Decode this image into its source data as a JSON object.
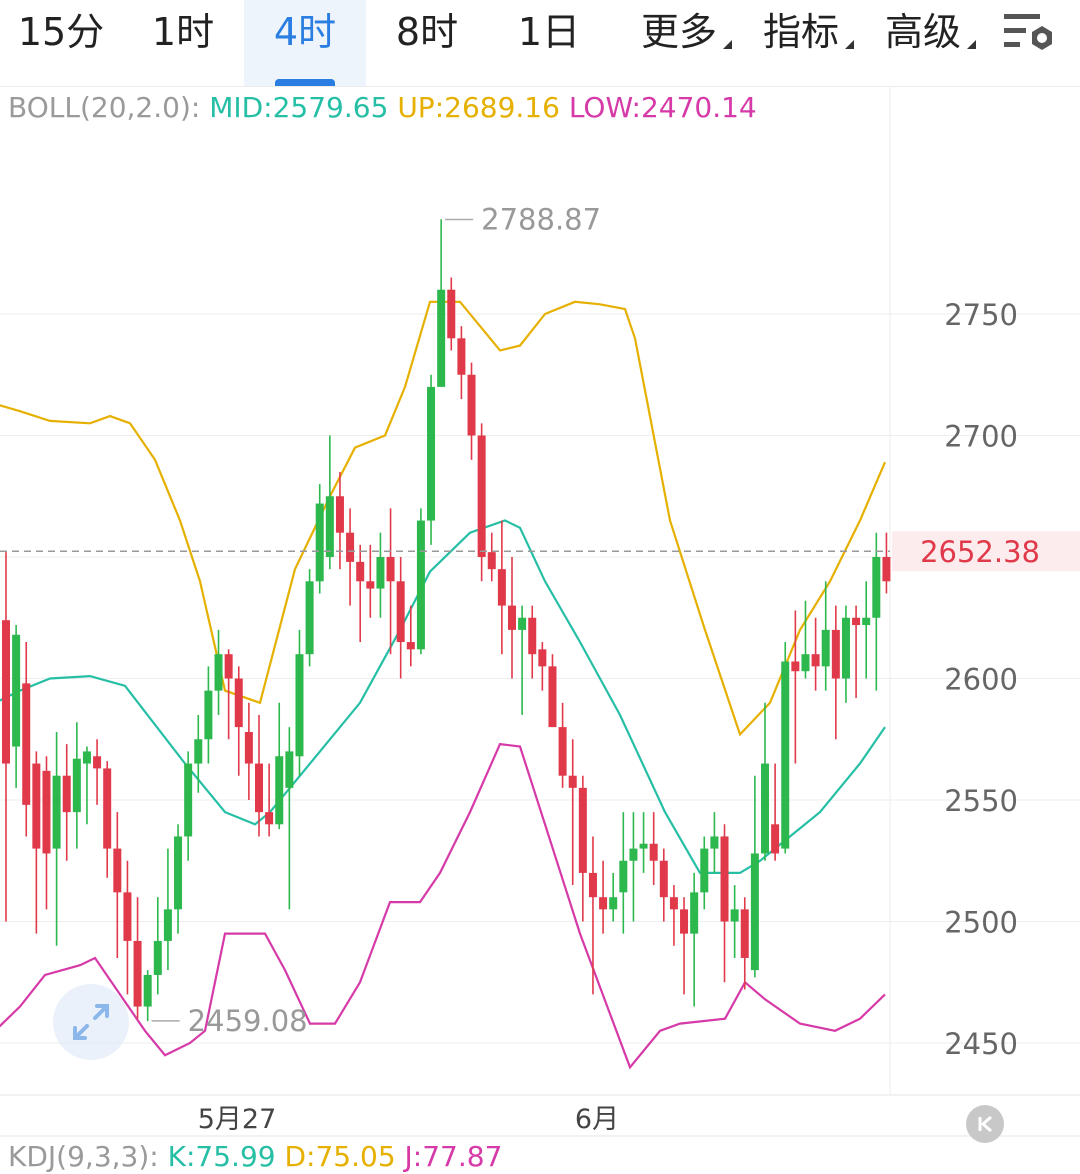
{
  "tabs": [
    {
      "label": "15分"
    },
    {
      "label": "1时"
    },
    {
      "label": "4时"
    },
    {
      "label": "8时"
    },
    {
      "label": "1日"
    },
    {
      "label": "更多"
    },
    {
      "label": "指标"
    },
    {
      "label": "高级"
    }
  ],
  "boll_legend": {
    "name": "BOLL(20,2.0):",
    "mid": "MID:2579.65",
    "up": "UP:2689.16",
    "low": "LOW:2470.14"
  },
  "kdj_legend": {
    "name": "KDJ(9,3,3):",
    "k": "K:75.99",
    "d": "D:75.05",
    "j": "J:77.87"
  },
  "chart_data": {
    "type": "candlestick",
    "y_ticks": [
      2450,
      2500,
      2550,
      2600,
      2650,
      2700,
      2750
    ],
    "y_tick_labels": [
      "2450",
      "2500",
      "2550",
      "2600",
      "2700",
      "2750"
    ],
    "x_labels": [
      "5月27",
      "6月"
    ],
    "ylim": [
      2435,
      2830
    ],
    "current_price_label": "2652.38",
    "current_price": 2652.38,
    "max_label": "2788.87",
    "max_value": 2788.87,
    "min_label": "2459.08",
    "min_value": 2459.08,
    "colors": {
      "up": "#2db84e",
      "down": "#e03a4a",
      "mid": "#26bfa6",
      "upper": "#e6b000",
      "lower": "#d63aa8",
      "price_line": "#999999",
      "price_label": "#e03a4a"
    },
    "candles": [
      [
        2624,
        2565,
        2652,
        2500
      ],
      [
        2572,
        2618,
        2622,
        2555
      ],
      [
        2598,
        2548,
        2615,
        2535
      ],
      [
        2565,
        2530,
        2570,
        2495
      ],
      [
        2562,
        2528,
        2568,
        2505
      ],
      [
        2530,
        2560,
        2578,
        2490
      ],
      [
        2560,
        2545,
        2573,
        2525
      ],
      [
        2545,
        2567,
        2582,
        2530
      ],
      [
        2565,
        2570,
        2572,
        2540
      ],
      [
        2568,
        2563,
        2575,
        2548
      ],
      [
        2563,
        2530,
        2566,
        2518
      ],
      [
        2530,
        2512,
        2545,
        2485
      ],
      [
        2512,
        2492,
        2525,
        2470
      ],
      [
        2492,
        2465,
        2510,
        2460
      ],
      [
        2465,
        2478,
        2480,
        2459
      ],
      [
        2478,
        2492,
        2510,
        2470
      ],
      [
        2492,
        2505,
        2530,
        2480
      ],
      [
        2505,
        2535,
        2540,
        2495
      ],
      [
        2535,
        2565,
        2570,
        2525
      ],
      [
        2565,
        2575,
        2585,
        2553
      ],
      [
        2575,
        2595,
        2605,
        2565
      ],
      [
        2595,
        2610,
        2620,
        2585
      ],
      [
        2610,
        2600,
        2612,
        2575
      ],
      [
        2600,
        2580,
        2605,
        2560
      ],
      [
        2578,
        2565,
        2590,
        2550
      ],
      [
        2565,
        2545,
        2585,
        2535
      ],
      [
        2545,
        2540,
        2565,
        2535
      ],
      [
        2540,
        2568,
        2590,
        2538
      ],
      [
        2555,
        2570,
        2580,
        2505
      ],
      [
        2568,
        2610,
        2620,
        2560
      ],
      [
        2610,
        2640,
        2645,
        2605
      ],
      [
        2640,
        2672,
        2680,
        2635
      ],
      [
        2650,
        2675,
        2700,
        2645
      ],
      [
        2675,
        2660,
        2685,
        2645
      ],
      [
        2660,
        2648,
        2670,
        2630
      ],
      [
        2648,
        2640,
        2655,
        2615
      ],
      [
        2640,
        2637,
        2655,
        2625
      ],
      [
        2637,
        2650,
        2660,
        2625
      ],
      [
        2650,
        2640,
        2670,
        2610
      ],
      [
        2640,
        2615,
        2650,
        2600
      ],
      [
        2615,
        2612,
        2630,
        2605
      ],
      [
        2612,
        2665,
        2670,
        2610
      ],
      [
        2665,
        2720,
        2725,
        2655
      ],
      [
        2720,
        2760,
        2789,
        2755
      ],
      [
        2760,
        2740,
        2765,
        2735
      ],
      [
        2740,
        2725,
        2745,
        2715
      ],
      [
        2725,
        2700,
        2730,
        2690
      ],
      [
        2700,
        2650,
        2705,
        2640
      ],
      [
        2652,
        2645,
        2660,
        2640
      ],
      [
        2645,
        2630,
        2665,
        2610
      ],
      [
        2630,
        2620,
        2650,
        2600
      ],
      [
        2620,
        2625,
        2630,
        2585
      ],
      [
        2625,
        2610,
        2630,
        2600
      ],
      [
        2612,
        2605,
        2615,
        2595
      ],
      [
        2605,
        2580,
        2610,
        2580
      ],
      [
        2580,
        2560,
        2590,
        2555
      ],
      [
        2560,
        2555,
        2575,
        2515
      ],
      [
        2555,
        2520,
        2560,
        2500
      ],
      [
        2520,
        2510,
        2535,
        2470
      ],
      [
        2510,
        2505,
        2525,
        2495
      ],
      [
        2505,
        2510,
        2520,
        2500
      ],
      [
        2512,
        2525,
        2545,
        2495
      ],
      [
        2525,
        2530,
        2545,
        2500
      ],
      [
        2530,
        2532,
        2545,
        2520
      ],
      [
        2532,
        2525,
        2545,
        2515
      ],
      [
        2525,
        2510,
        2530,
        2500
      ],
      [
        2510,
        2505,
        2515,
        2490
      ],
      [
        2505,
        2495,
        2510,
        2470
      ],
      [
        2495,
        2512,
        2520,
        2465
      ],
      [
        2512,
        2530,
        2535,
        2505
      ],
      [
        2530,
        2535,
        2545,
        2520
      ],
      [
        2535,
        2500,
        2540,
        2475
      ],
      [
        2500,
        2505,
        2515,
        2485
      ],
      [
        2505,
        2485,
        2510,
        2472
      ],
      [
        2480,
        2528,
        2560,
        2477
      ],
      [
        2528,
        2565,
        2590,
        2525
      ],
      [
        2540,
        2528,
        2565,
        2525
      ],
      [
        2530,
        2607,
        2615,
        2528
      ],
      [
        2607,
        2603,
        2628,
        2565
      ],
      [
        2603,
        2610,
        2632,
        2600
      ],
      [
        2610,
        2605,
        2625,
        2595
      ],
      [
        2605,
        2620,
        2640,
        2595
      ],
      [
        2620,
        2600,
        2630,
        2575
      ],
      [
        2600,
        2625,
        2630,
        2590
      ],
      [
        2625,
        2622,
        2630,
        2592
      ],
      [
        2622,
        2625,
        2640,
        2600
      ],
      [
        2625,
        2650,
        2660,
        2595
      ],
      [
        2650,
        2640,
        2660,
        2635
      ]
    ],
    "boll_mid": [
      [
        -5,
        2590
      ],
      [
        20,
        2595
      ],
      [
        50,
        2600
      ],
      [
        90,
        2601
      ],
      [
        125,
        2597
      ],
      [
        185,
        2565
      ],
      [
        225,
        2545
      ],
      [
        255,
        2540
      ],
      [
        270,
        2545
      ],
      [
        300,
        2560
      ],
      [
        360,
        2590
      ],
      [
        400,
        2620
      ],
      [
        430,
        2644
      ],
      [
        470,
        2660
      ],
      [
        505,
        2665
      ],
      [
        520,
        2662
      ],
      [
        545,
        2640
      ],
      [
        580,
        2615
      ],
      [
        620,
        2585
      ],
      [
        665,
        2545
      ],
      [
        700,
        2520
      ],
      [
        740,
        2520
      ],
      [
        760,
        2525
      ],
      [
        820,
        2545
      ],
      [
        860,
        2565
      ],
      [
        885,
        2580
      ]
    ],
    "boll_up": [
      [
        -5,
        2713
      ],
      [
        20,
        2710
      ],
      [
        50,
        2706
      ],
      [
        90,
        2705
      ],
      [
        110,
        2708
      ],
      [
        130,
        2705
      ],
      [
        155,
        2690
      ],
      [
        180,
        2665
      ],
      [
        200,
        2640
      ],
      [
        225,
        2595
      ],
      [
        260,
        2590
      ],
      [
        295,
        2645
      ],
      [
        330,
        2675
      ],
      [
        355,
        2695
      ],
      [
        385,
        2700
      ],
      [
        405,
        2720
      ],
      [
        430,
        2755
      ],
      [
        460,
        2755
      ],
      [
        480,
        2745
      ],
      [
        500,
        2735
      ],
      [
        520,
        2737
      ],
      [
        545,
        2750
      ],
      [
        575,
        2755
      ],
      [
        600,
        2754
      ],
      [
        625,
        2752
      ],
      [
        635,
        2740
      ],
      [
        670,
        2665
      ],
      [
        705,
        2620
      ],
      [
        740,
        2577
      ],
      [
        770,
        2590
      ],
      [
        800,
        2620
      ],
      [
        830,
        2640
      ],
      [
        860,
        2665
      ],
      [
        885,
        2689
      ]
    ],
    "boll_low": [
      [
        -5,
        2455
      ],
      [
        20,
        2465
      ],
      [
        45,
        2478
      ],
      [
        80,
        2482
      ],
      [
        95,
        2485
      ],
      [
        120,
        2470
      ],
      [
        145,
        2455
      ],
      [
        165,
        2445
      ],
      [
        190,
        2450
      ],
      [
        205,
        2455
      ],
      [
        225,
        2495
      ],
      [
        265,
        2495
      ],
      [
        285,
        2480
      ],
      [
        310,
        2458
      ],
      [
        335,
        2458
      ],
      [
        360,
        2475
      ],
      [
        390,
        2508
      ],
      [
        420,
        2508
      ],
      [
        440,
        2520
      ],
      [
        470,
        2545
      ],
      [
        500,
        2573
      ],
      [
        520,
        2572
      ],
      [
        545,
        2540
      ],
      [
        580,
        2495
      ],
      [
        630,
        2440
      ],
      [
        660,
        2455
      ],
      [
        680,
        2458
      ],
      [
        725,
        2460
      ],
      [
        745,
        2475
      ],
      [
        765,
        2468
      ],
      [
        800,
        2458
      ],
      [
        835,
        2455
      ],
      [
        860,
        2460
      ],
      [
        885,
        2470
      ]
    ]
  }
}
